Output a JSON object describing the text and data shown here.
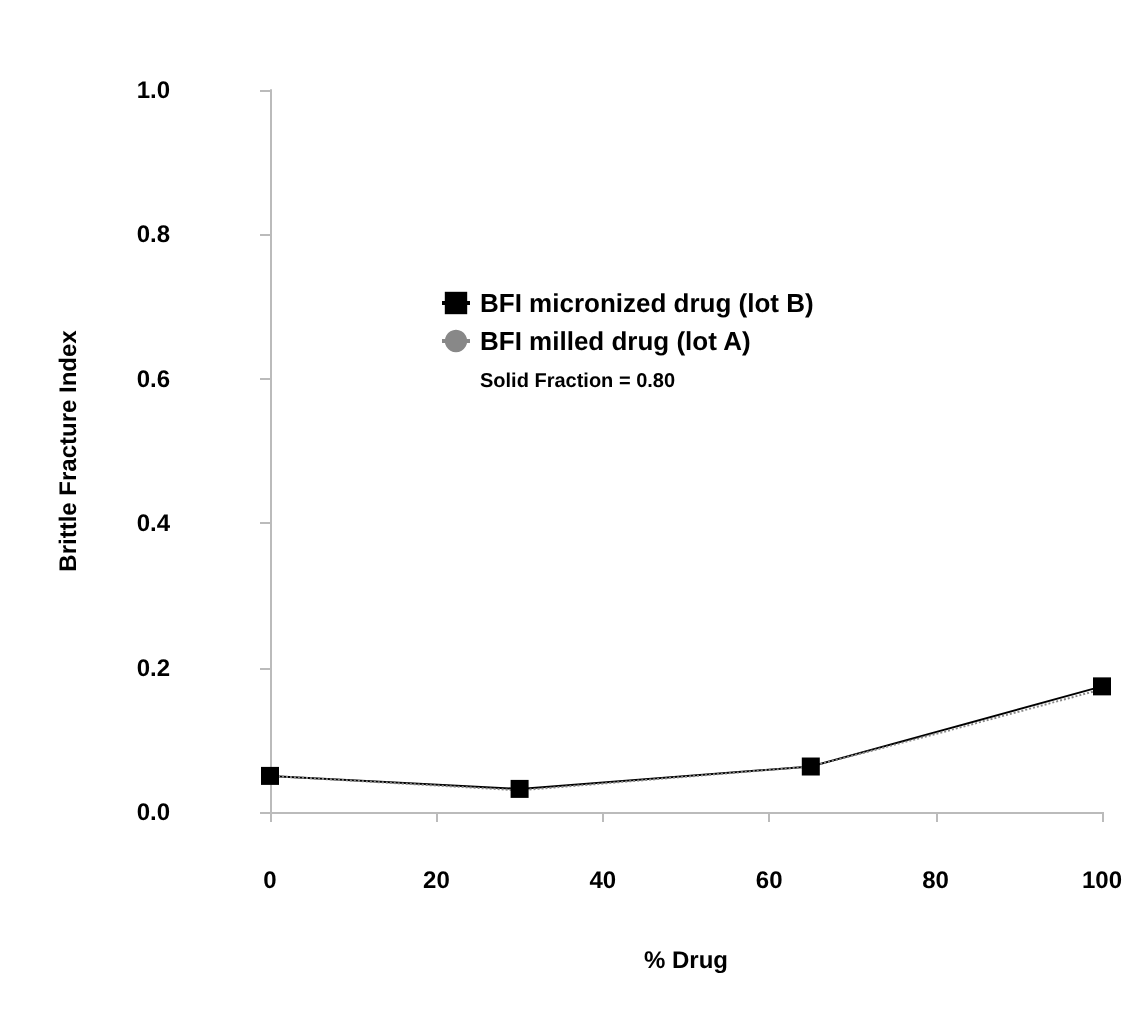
{
  "chart_data": {
    "type": "line",
    "xlabel": "% Drug",
    "ylabel": "Brittle Fracture Index",
    "annotations": [
      "Solid Fraction = 0.80"
    ],
    "xlim": [
      0,
      100
    ],
    "xticks": [
      0,
      20,
      40,
      60,
      80,
      100
    ],
    "ylim": [
      0,
      1
    ],
    "yticks": [
      {
        "value": 0,
        "label": "0.0"
      },
      0.2,
      0.4,
      0.6,
      0.8,
      {
        "value": 1,
        "label": "1.0"
      }
    ],
    "grid": false,
    "legend": "top",
    "series": [
      {
        "name": "BFI micronized drug (lot B)",
        "color": "#000000",
        "marker": "square",
        "line_style": "solid",
        "x": [
          0,
          30,
          65,
          100
        ],
        "values": [
          0.05,
          0.032,
          0.063,
          0.174
        ]
      },
      {
        "name": "BFI milled drug (lot A)",
        "color": "#888888",
        "marker": "none",
        "line_style": "dotted",
        "x": [
          0,
          30,
          65,
          80,
          100
        ],
        "values": [
          0.05,
          0.03,
          0.063,
          0.108,
          0.17
        ]
      }
    ]
  }
}
